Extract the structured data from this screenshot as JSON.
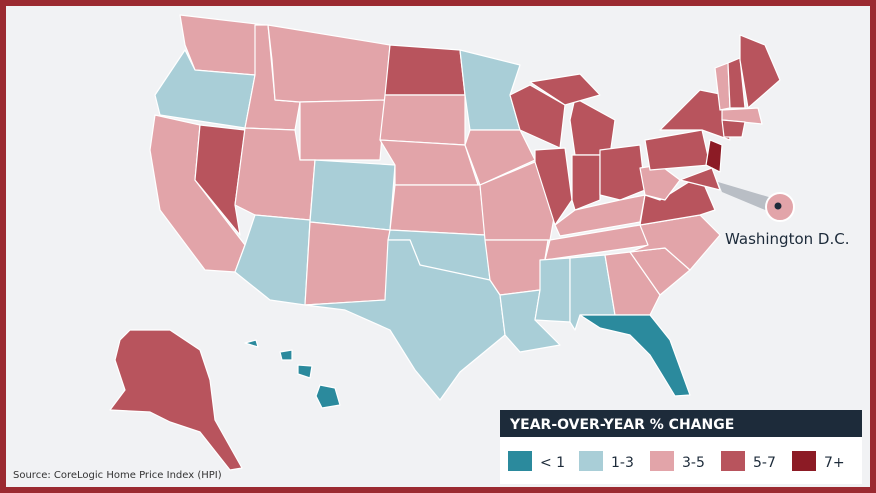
{
  "callout": {
    "label": "Washington D.C."
  },
  "legend": {
    "title": "YEAR-OVER-YEAR % CHANGE",
    "items": [
      {
        "label": "< 1",
        "color": "#2b8a9d"
      },
      {
        "label": "1-3",
        "color": "#a9ced7"
      },
      {
        "label": "3-5",
        "color": "#e2a4a9"
      },
      {
        "label": "5-7",
        "color": "#b8545d"
      },
      {
        "label": "7+",
        "color": "#8c1b25"
      }
    ]
  },
  "source": "Source: CoreLogic Home Price Index (HPI)"
}
